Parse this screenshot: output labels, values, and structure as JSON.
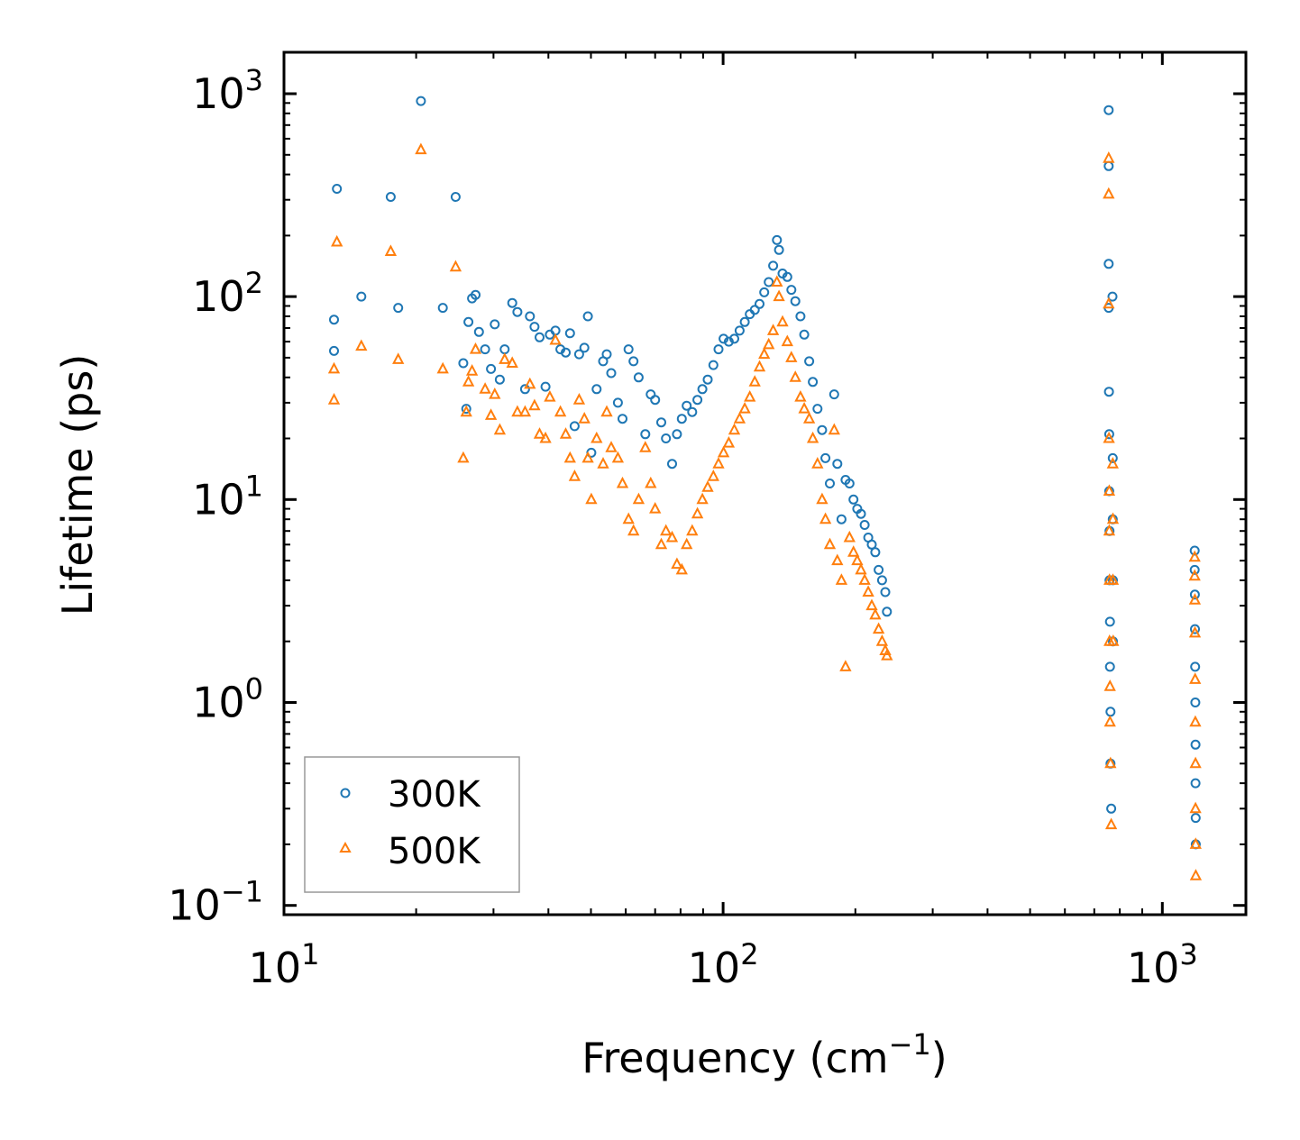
{
  "chart_data": {
    "type": "scatter",
    "xscale": "log",
    "yscale": "log",
    "xlim": [
      10,
      1550
    ],
    "ylim": [
      0.09,
      1600
    ],
    "xlabel": "Frequency (cm",
    "xlabel_sup": "−1",
    "xlabel_tail": ")",
    "ylabel": "Lifetime (ps)",
    "legend_position": "lower-left",
    "x_ticks": [
      {
        "base": "10",
        "exp": "1",
        "value": 10
      },
      {
        "base": "10",
        "exp": "2",
        "value": 100
      },
      {
        "base": "10",
        "exp": "3",
        "value": 1000
      }
    ],
    "y_ticks": [
      {
        "base": "10",
        "exp": "−1",
        "value": 0.1
      },
      {
        "base": "10",
        "exp": "0",
        "value": 1
      },
      {
        "base": "10",
        "exp": "1",
        "value": 10
      },
      {
        "base": "10",
        "exp": "2",
        "value": 100
      },
      {
        "base": "10",
        "exp": "3",
        "value": 1000
      }
    ],
    "series": [
      {
        "name": "300K",
        "marker": "circle",
        "color": "#1f77b4",
        "points": [
          [
            13,
            77
          ],
          [
            13,
            54
          ],
          [
            13.2,
            340
          ],
          [
            15,
            100
          ],
          [
            17.5,
            310
          ],
          [
            18.2,
            88
          ],
          [
            20.5,
            920
          ],
          [
            23,
            88
          ],
          [
            24.6,
            310
          ],
          [
            25.6,
            47
          ],
          [
            26,
            28
          ],
          [
            26.3,
            75
          ],
          [
            26.8,
            98
          ],
          [
            27.3,
            102
          ],
          [
            27.8,
            67
          ],
          [
            28.7,
            55
          ],
          [
            29.6,
            44
          ],
          [
            30.2,
            73
          ],
          [
            31,
            39
          ],
          [
            31.8,
            55
          ],
          [
            33.1,
            93
          ],
          [
            34,
            84
          ],
          [
            35.4,
            35
          ],
          [
            36.3,
            80
          ],
          [
            37.2,
            71
          ],
          [
            38.2,
            63
          ],
          [
            39.4,
            36
          ],
          [
            40.3,
            65
          ],
          [
            41.5,
            68
          ],
          [
            42.6,
            55
          ],
          [
            43.8,
            53
          ],
          [
            44.8,
            66
          ],
          [
            45.9,
            23
          ],
          [
            47,
            52
          ],
          [
            48.3,
            56
          ],
          [
            49.2,
            80
          ],
          [
            50.1,
            17
          ],
          [
            51.5,
            35
          ],
          [
            53.3,
            48
          ],
          [
            54.3,
            52
          ],
          [
            55.6,
            42
          ],
          [
            57.6,
            30
          ],
          [
            59,
            25
          ],
          [
            60.9,
            55
          ],
          [
            62.5,
            48
          ],
          [
            64.2,
            40
          ],
          [
            66.5,
            21
          ],
          [
            68.4,
            33
          ],
          [
            70,
            31
          ],
          [
            72.3,
            24
          ],
          [
            74.1,
            20
          ],
          [
            76.5,
            15
          ],
          [
            78.5,
            21
          ],
          [
            80.5,
            25
          ],
          [
            82.6,
            29
          ],
          [
            85,
            27
          ],
          [
            87.4,
            31
          ],
          [
            89.7,
            35
          ],
          [
            92.2,
            39
          ],
          [
            95,
            46
          ],
          [
            97.6,
            55
          ],
          [
            100.2,
            62
          ],
          [
            103,
            60
          ],
          [
            106,
            62
          ],
          [
            109,
            68
          ],
          [
            112,
            75
          ],
          [
            115,
            82
          ],
          [
            118,
            86
          ],
          [
            121,
            92
          ],
          [
            124,
            105
          ],
          [
            127,
            118
          ],
          [
            130,
            142
          ],
          [
            132.6,
            190
          ],
          [
            134,
            170
          ],
          [
            136.5,
            130
          ],
          [
            140,
            125
          ],
          [
            143,
            108
          ],
          [
            146,
            95
          ],
          [
            150,
            80
          ],
          [
            153,
            65
          ],
          [
            157,
            48
          ],
          [
            160,
            38
          ],
          [
            164,
            28
          ],
          [
            168,
            22
          ],
          [
            171,
            16
          ],
          [
            175,
            12
          ],
          [
            179,
            33
          ],
          [
            182,
            15
          ],
          [
            186,
            8
          ],
          [
            190,
            12.5
          ],
          [
            194,
            12
          ],
          [
            198,
            10
          ],
          [
            202,
            9
          ],
          [
            206,
            8.5
          ],
          [
            210,
            7.5
          ],
          [
            214,
            6.5
          ],
          [
            218,
            6
          ],
          [
            222,
            5.5
          ],
          [
            226,
            4.5
          ],
          [
            230,
            4
          ],
          [
            234,
            3.5
          ],
          [
            236,
            2.8
          ],
          [
            755,
            830
          ],
          [
            755,
            440
          ],
          [
            755,
            145
          ],
          [
            755,
            88
          ],
          [
            756,
            34
          ],
          [
            757,
            21
          ],
          [
            757,
            11
          ],
          [
            758,
            7
          ],
          [
            758,
            4
          ],
          [
            760,
            2.5
          ],
          [
            760,
            1.5
          ],
          [
            762,
            0.9
          ],
          [
            762,
            0.5
          ],
          [
            765,
            0.3
          ],
          [
            770,
            100
          ],
          [
            771,
            16
          ],
          [
            771,
            8
          ],
          [
            772,
            4
          ],
          [
            772,
            2
          ],
          [
            1185,
            5.6
          ],
          [
            1185,
            4.5
          ],
          [
            1186,
            3.4
          ],
          [
            1187,
            2.3
          ],
          [
            1188,
            1.5
          ],
          [
            1189,
            1
          ],
          [
            1190,
            0.62
          ],
          [
            1190,
            0.4
          ],
          [
            1191,
            0.27
          ],
          [
            1192,
            0.2
          ]
        ]
      },
      {
        "name": "500K",
        "marker": "triangle",
        "color": "#ff7f0e",
        "points": [
          [
            13,
            44
          ],
          [
            13,
            31
          ],
          [
            13.2,
            186
          ],
          [
            15,
            57
          ],
          [
            17.5,
            167
          ],
          [
            18.2,
            49
          ],
          [
            20.5,
            530
          ],
          [
            23,
            44
          ],
          [
            24.6,
            140
          ],
          [
            25.6,
            16
          ],
          [
            26,
            27
          ],
          [
            26.3,
            38
          ],
          [
            26.8,
            43
          ],
          [
            27.3,
            55
          ],
          [
            28.7,
            35
          ],
          [
            29.6,
            26
          ],
          [
            30.2,
            33
          ],
          [
            31,
            22
          ],
          [
            31.8,
            49
          ],
          [
            33.1,
            47
          ],
          [
            34,
            27
          ],
          [
            35.4,
            27
          ],
          [
            36.3,
            37
          ],
          [
            37.2,
            29
          ],
          [
            38.2,
            21
          ],
          [
            39.4,
            20
          ],
          [
            40.3,
            32
          ],
          [
            41.5,
            61
          ],
          [
            42.6,
            27
          ],
          [
            43.8,
            21
          ],
          [
            44.8,
            16
          ],
          [
            45.9,
            13
          ],
          [
            47,
            31
          ],
          [
            48.3,
            25
          ],
          [
            49.2,
            16
          ],
          [
            50.1,
            10
          ],
          [
            51.5,
            20
          ],
          [
            53.3,
            15
          ],
          [
            54.3,
            27
          ],
          [
            55.6,
            18
          ],
          [
            57.6,
            16
          ],
          [
            59,
            12
          ],
          [
            60.9,
            8
          ],
          [
            62.5,
            7
          ],
          [
            64.2,
            10
          ],
          [
            66.5,
            18
          ],
          [
            68.4,
            12
          ],
          [
            70,
            9
          ],
          [
            72.3,
            6
          ],
          [
            74.1,
            7
          ],
          [
            76.5,
            6.5
          ],
          [
            78.5,
            4.8
          ],
          [
            80.5,
            4.5
          ],
          [
            82.6,
            6
          ],
          [
            85,
            7
          ],
          [
            87.4,
            8.5
          ],
          [
            89.7,
            10
          ],
          [
            92.2,
            11.5
          ],
          [
            95,
            13
          ],
          [
            97.6,
            15
          ],
          [
            100.2,
            17
          ],
          [
            103,
            19
          ],
          [
            106,
            22
          ],
          [
            109,
            25
          ],
          [
            112,
            28
          ],
          [
            115,
            32
          ],
          [
            118,
            38
          ],
          [
            121,
            45
          ],
          [
            124,
            52
          ],
          [
            127,
            58
          ],
          [
            130,
            68
          ],
          [
            132.6,
            118
          ],
          [
            134,
            100
          ],
          [
            136.5,
            75
          ],
          [
            140,
            60
          ],
          [
            143,
            50
          ],
          [
            146,
            40
          ],
          [
            150,
            32
          ],
          [
            153,
            28
          ],
          [
            157,
            25
          ],
          [
            160,
            20
          ],
          [
            164,
            15
          ],
          [
            168,
            10
          ],
          [
            171,
            8
          ],
          [
            175,
            6
          ],
          [
            179,
            22
          ],
          [
            182,
            5
          ],
          [
            186,
            4
          ],
          [
            190,
            1.5
          ],
          [
            194,
            6.5
          ],
          [
            198,
            5.5
          ],
          [
            202,
            5
          ],
          [
            206,
            4.5
          ],
          [
            210,
            4
          ],
          [
            214,
            3.5
          ],
          [
            218,
            3
          ],
          [
            222,
            2.7
          ],
          [
            226,
            2.3
          ],
          [
            230,
            2
          ],
          [
            234,
            1.8
          ],
          [
            236,
            1.7
          ],
          [
            755,
            480
          ],
          [
            755,
            320
          ],
          [
            755,
            92
          ],
          [
            756,
            20
          ],
          [
            757,
            11
          ],
          [
            757,
            7
          ],
          [
            758,
            4
          ],
          [
            758,
            2
          ],
          [
            760,
            1.2
          ],
          [
            760,
            0.8
          ],
          [
            762,
            0.5
          ],
          [
            765,
            0.25
          ],
          [
            771,
            15
          ],
          [
            772,
            8
          ],
          [
            772,
            4
          ],
          [
            773,
            2
          ],
          [
            1185,
            5.2
          ],
          [
            1185,
            4.2
          ],
          [
            1186,
            3.2
          ],
          [
            1187,
            2.2
          ],
          [
            1188,
            1.3
          ],
          [
            1189,
            0.8
          ],
          [
            1190,
            0.5
          ],
          [
            1190,
            0.3
          ],
          [
            1191,
            0.2
          ],
          [
            1192,
            0.14
          ]
        ]
      }
    ]
  }
}
